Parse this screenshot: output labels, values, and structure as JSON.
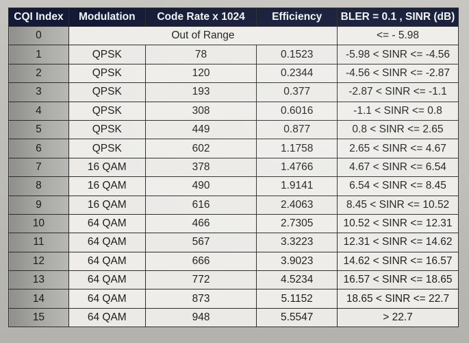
{
  "table": {
    "headers": [
      "CQI Index",
      "Modulation",
      "Code Rate x 1024",
      "Efficiency",
      "BLER = 0.1 , SINR (dB)"
    ],
    "out_of_range_row": {
      "index": "0",
      "label": "Out of Range",
      "sinr": "<= - 5.98"
    },
    "rows": [
      {
        "index": "1",
        "modulation": "QPSK",
        "code_rate": "78",
        "efficiency": "0.1523",
        "sinr": "-5.98 < SINR <= -4.56"
      },
      {
        "index": "2",
        "modulation": "QPSK",
        "code_rate": "120",
        "efficiency": "0.2344",
        "sinr": "-4.56 < SINR <= -2.87"
      },
      {
        "index": "3",
        "modulation": "QPSK",
        "code_rate": "193",
        "efficiency": "0.377",
        "sinr": "-2.87 < SINR <= -1.1"
      },
      {
        "index": "4",
        "modulation": "QPSK",
        "code_rate": "308",
        "efficiency": "0.6016",
        "sinr": "-1.1 < SINR <= 0.8"
      },
      {
        "index": "5",
        "modulation": "QPSK",
        "code_rate": "449",
        "efficiency": "0.877",
        "sinr": "0.8 < SINR <= 2.65"
      },
      {
        "index": "6",
        "modulation": "QPSK",
        "code_rate": "602",
        "efficiency": "1.1758",
        "sinr": "2.65 < SINR <= 4.67"
      },
      {
        "index": "7",
        "modulation": "16 QAM",
        "code_rate": "378",
        "efficiency": "1.4766",
        "sinr": "4.67 < SINR <= 6.54"
      },
      {
        "index": "8",
        "modulation": "16 QAM",
        "code_rate": "490",
        "efficiency": "1.9141",
        "sinr": "6.54 < SINR <= 8.45"
      },
      {
        "index": "9",
        "modulation": "16 QAM",
        "code_rate": "616",
        "efficiency": "2.4063",
        "sinr": "8.45 < SINR <= 10.52"
      },
      {
        "index": "10",
        "modulation": "64 QAM",
        "code_rate": "466",
        "efficiency": "2.7305",
        "sinr": "10.52 < SINR <= 12.31"
      },
      {
        "index": "11",
        "modulation": "64 QAM",
        "code_rate": "567",
        "efficiency": "3.3223",
        "sinr": "12.31 < SINR <= 14.62"
      },
      {
        "index": "12",
        "modulation": "64 QAM",
        "code_rate": "666",
        "efficiency": "3.9023",
        "sinr": "14.62 < SINR <= 16.57"
      },
      {
        "index": "13",
        "modulation": "64 QAM",
        "code_rate": "772",
        "efficiency": "4.5234",
        "sinr": "16.57 < SINR <= 18.65"
      },
      {
        "index": "14",
        "modulation": "64 QAM",
        "code_rate": "873",
        "efficiency": "5.1152",
        "sinr": "18.65 < SINR <= 22.7"
      },
      {
        "index": "15",
        "modulation": "64 QAM",
        "code_rate": "948",
        "efficiency": "5.5547",
        "sinr": "> 22.7"
      }
    ]
  },
  "colors": {
    "header_bg": "#131a37",
    "header_text": "#f3f3f3",
    "index_cell_bg": "#a0a09d",
    "cell_bg": "#eeedea"
  }
}
